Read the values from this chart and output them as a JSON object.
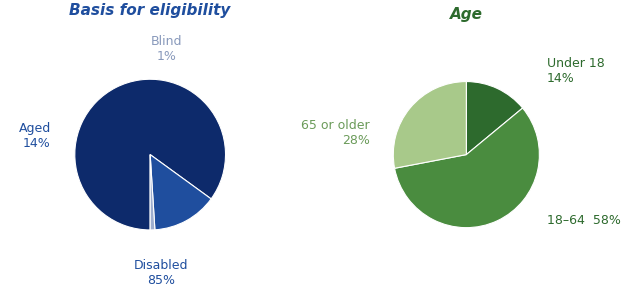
{
  "chart1_title": "Basis for eligibility",
  "chart1_values": [
    85,
    14,
    1
  ],
  "chart1_colors": [
    "#0d2a6b",
    "#1f4e9e",
    "#9eaecf"
  ],
  "chart1_startangle": 270,
  "chart2_title": "Age",
  "chart2_values": [
    14,
    58,
    28
  ],
  "chart2_colors": [
    "#2d6a2d",
    "#4a8c3f",
    "#a8c98a"
  ],
  "chart2_startangle": 90,
  "title_fontsize": 11,
  "label_fontsize": 9,
  "background_color": "#ffffff",
  "chart1_label_color": "#1f4e9e",
  "chart1_blind_color": "#8899bb",
  "chart2_label_color_dark": "#2d6a2d",
  "chart2_label_color_light": "#6b9b5a"
}
